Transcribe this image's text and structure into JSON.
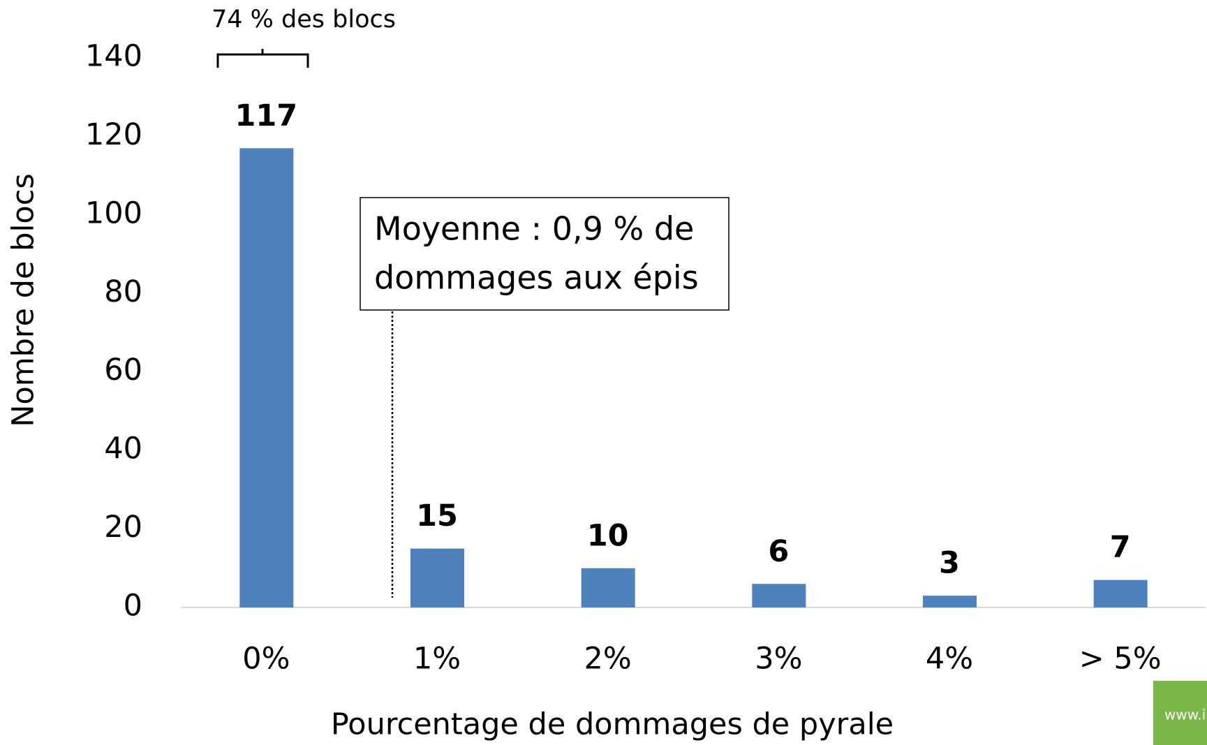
{
  "chart_data": {
    "type": "bar",
    "categories": [
      "0%",
      "1%",
      "2%",
      "3%",
      "4%",
      "> 5%"
    ],
    "values": [
      117,
      15,
      10,
      6,
      3,
      7
    ],
    "color": "#4f81bd",
    "ylim": [
      0,
      140
    ],
    "yticks": [
      0,
      20,
      40,
      60,
      80,
      100,
      120,
      140
    ],
    "grid": false,
    "y_label": "Nombre de blocs",
    "x_label": "Pourcentage de dommages de pyrale",
    "annotations": [
      "74 % des blocs",
      "Moyenne : 0,9 % de",
      "dommages aux épis"
    ],
    "logo": "www.irda.qc.ca"
  }
}
